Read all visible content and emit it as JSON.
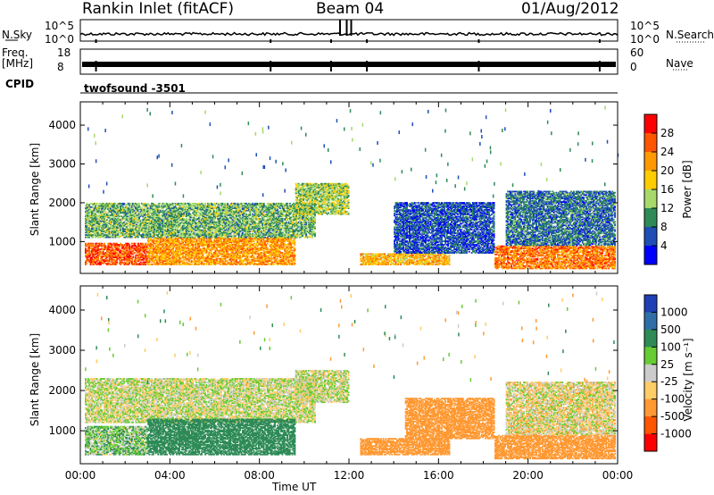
{
  "header": {
    "station": "Rankin Inlet (fitACF)",
    "beam": "Beam 04",
    "date": "01/Aug/2012"
  },
  "status_panels": {
    "nsky_label": "N.Sky",
    "nsky_ticks": [
      "10^5",
      "10^0"
    ],
    "nsearch_label": "N.Search",
    "nsearch_ticks": [
      "10^5",
      "10^0"
    ],
    "freq_label": "Freq.",
    "freq_unit": "[MHz]",
    "freq_ticks": [
      "18",
      "8"
    ],
    "nave_label": "Nave",
    "nave_ticks": [
      "60",
      "0"
    ],
    "cpid_label": "CPID",
    "cpid_value": "twofsound  -3501"
  },
  "chart_data": [
    {
      "type": "heatmap",
      "name": "power",
      "ylabel": "Slant Range [km]",
      "xlabel": "Time UT",
      "xlim_hours": [
        0,
        24
      ],
      "ylim": [
        180,
        4600
      ],
      "x_ticks": [
        "00:00",
        "04:00",
        "08:00",
        "12:00",
        "16:00",
        "20:00",
        "00:00"
      ],
      "y_ticks": [
        1000,
        2000,
        3000,
        4000
      ],
      "colorbar": {
        "label": "Power [dB]",
        "ticks": [
          "28",
          "24",
          "20",
          "16",
          "12",
          "8",
          "4"
        ],
        "colors": [
          "#ff0000",
          "#ff5500",
          "#ff9900",
          "#ffcc00",
          "#a6d96a",
          "#2e8b57",
          "#1f4fb5",
          "#0000ff"
        ]
      },
      "regions": [
        {
          "t": [
            0.2,
            3.0
          ],
          "r": [
            400,
            950
          ],
          "value": 26
        },
        {
          "t": [
            3.0,
            9.6
          ],
          "r": [
            400,
            1100
          ],
          "value": 22
        },
        {
          "t": [
            0.2,
            10.5
          ],
          "r": [
            1100,
            2000
          ],
          "value": 12
        },
        {
          "t": [
            9.6,
            12.0
          ],
          "r": [
            1700,
            2500
          ],
          "value": 14
        },
        {
          "t": [
            12.5,
            16.5
          ],
          "r": [
            400,
            700
          ],
          "value": 20
        },
        {
          "t": [
            14.0,
            18.5
          ],
          "r": [
            700,
            2000
          ],
          "value": 6
        },
        {
          "t": [
            18.5,
            23.9
          ],
          "r": [
            300,
            900
          ],
          "value": 24
        },
        {
          "t": [
            19.0,
            23.9
          ],
          "r": [
            900,
            2300
          ],
          "value": 8
        }
      ]
    },
    {
      "type": "heatmap",
      "name": "velocity",
      "ylabel": "Slant Range [km]",
      "xlabel": "Time UT",
      "xlim_hours": [
        0,
        24
      ],
      "ylim": [
        180,
        4600
      ],
      "x_ticks": [
        "00:00",
        "04:00",
        "08:00",
        "12:00",
        "16:00",
        "20:00",
        "00:00"
      ],
      "y_ticks": [
        1000,
        2000,
        3000,
        4000
      ],
      "colorbar": {
        "label": "Velocity [m s⁻¹]",
        "ticks": [
          "1000",
          "500",
          "100",
          "25",
          "-25",
          "-100",
          "-500",
          "-1000"
        ],
        "colors": [
          "#1f3fb5",
          "#2e6fa8",
          "#2e8b57",
          "#66cc33",
          "#cccccc",
          "#ffcc66",
          "#ff9933",
          "#ff5500",
          "#ff0000"
        ]
      },
      "regions": [
        {
          "t": [
            0.2,
            10.5
          ],
          "r": [
            1200,
            2300
          ],
          "value": 0
        },
        {
          "t": [
            0.2,
            3.0
          ],
          "r": [
            400,
            1100
          ],
          "value": 60
        },
        {
          "t": [
            3.0,
            9.6
          ],
          "r": [
            400,
            1300
          ],
          "value": 250
        },
        {
          "t": [
            9.6,
            12.0
          ],
          "r": [
            1700,
            2500
          ],
          "value": 0
        },
        {
          "t": [
            12.5,
            16.5
          ],
          "r": [
            400,
            800
          ],
          "value": -300
        },
        {
          "t": [
            14.5,
            18.5
          ],
          "r": [
            800,
            1800
          ],
          "value": -200
        },
        {
          "t": [
            18.5,
            23.9
          ],
          "r": [
            300,
            900
          ],
          "value": -400
        },
        {
          "t": [
            19.0,
            23.9
          ],
          "r": [
            900,
            2200
          ],
          "value": -30
        }
      ]
    }
  ]
}
